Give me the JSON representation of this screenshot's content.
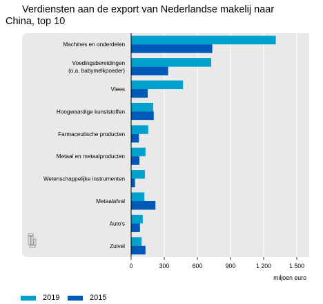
{
  "colors": {
    "series_2019": "#00a1cd",
    "series_2015": "#0058b8",
    "panel_bg": "#e9e9e9",
    "grid": "#ffffff",
    "axis": "#000000"
  },
  "icons": {
    "panel_logo": "cbs-logo-icon"
  },
  "chart_data": {
    "type": "bar",
    "orientation": "horizontal",
    "title": "Verdiensten aan de export van Nederlandse makelij naar China, top 10",
    "title_lines": [
      "Verdiensten aan de export van Nederlandse makelij naar",
      "China, top 10"
    ],
    "xlabel": "miljoen euro",
    "xlim": [
      0,
      1500
    ],
    "xticks": [
      0,
      300,
      600,
      900,
      1200,
      1500
    ],
    "xtick_labels": [
      "0",
      "300",
      "600",
      "900",
      "1 200",
      "1 500"
    ],
    "grid": true,
    "legend_position": "bottom-left",
    "categories": [
      [
        "Machines en onderdelen"
      ],
      [
        "Voedingsbereidingen",
        "(o.a. babymelkpoeder)"
      ],
      [
        "Vlees"
      ],
      [
        "Hoogwaardige kunststoffen"
      ],
      [
        "Farmaceutische producten"
      ],
      [
        "Metaal en metaalproducten"
      ],
      [
        "Wetenschappelijke instrumenten"
      ],
      [
        "Metaalafval"
      ],
      [
        "Auto's"
      ],
      [
        "Zuivel"
      ]
    ],
    "series": [
      {
        "name": "2019",
        "values": [
          1310,
          725,
          470,
          200,
          155,
          130,
          125,
          120,
          105,
          95
        ]
      },
      {
        "name": "2015",
        "values": [
          735,
          335,
          150,
          205,
          70,
          75,
          35,
          220,
          80,
          130
        ]
      }
    ]
  }
}
